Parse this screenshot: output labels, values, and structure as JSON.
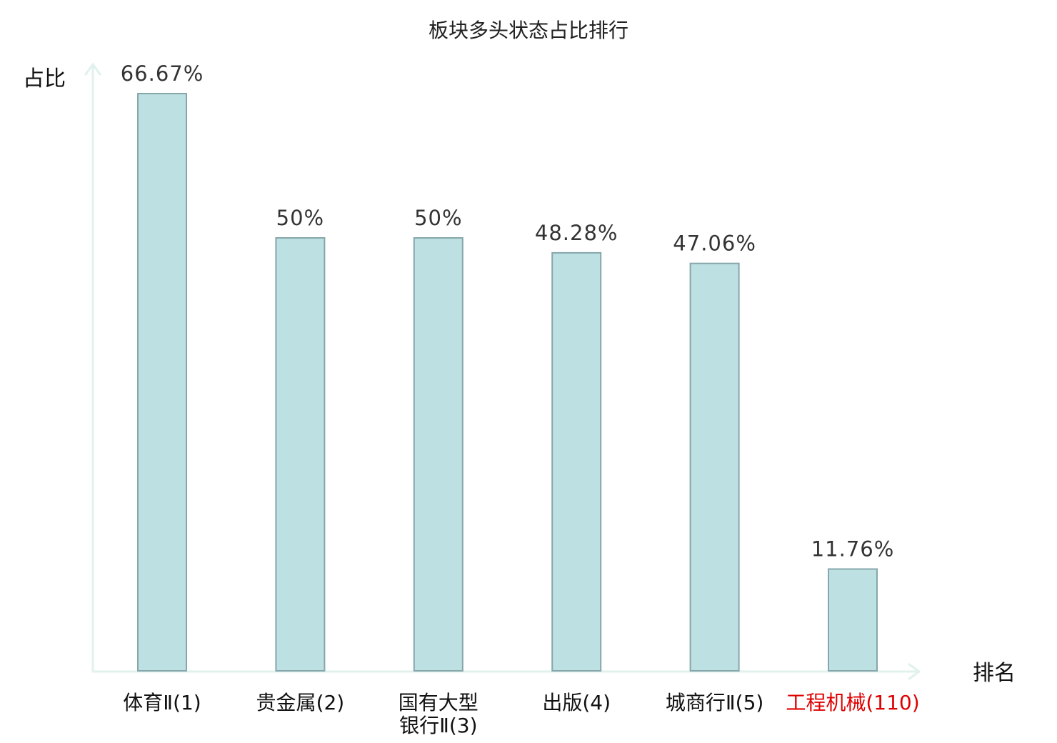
{
  "chart_data": {
    "type": "bar",
    "title": "板块多头状态占比排行",
    "xlabel": "排名",
    "ylabel": "占比",
    "categories": [
      {
        "name_lines": [
          "体育Ⅱ"
        ],
        "rank": "(1)",
        "highlight": false
      },
      {
        "name_lines": [
          "贵金属"
        ],
        "rank": "(2)",
        "highlight": false
      },
      {
        "name_lines": [
          "国有大型",
          "银行Ⅱ"
        ],
        "rank": "(3)",
        "highlight": false
      },
      {
        "name_lines": [
          "出版"
        ],
        "rank": "(4)",
        "highlight": false
      },
      {
        "name_lines": [
          "城商行Ⅱ"
        ],
        "rank": "(5)",
        "highlight": false
      },
      {
        "name_lines": [
          "工程机械"
        ],
        "rank": "(110)",
        "highlight": true
      }
    ],
    "values": [
      66.67,
      50,
      50,
      48.28,
      47.06,
      11.76
    ],
    "value_labels": [
      "66.67%",
      "50%",
      "50%",
      "48.28%",
      "47.06%",
      "11.76%"
    ],
    "ylim": [
      0,
      70
    ],
    "grid": false,
    "legend": "none",
    "colors": {
      "bar_fill": "#bde0e3",
      "bar_stroke": "#86a7aa",
      "axis": "#e0f1ee",
      "label": "#111111",
      "highlight": "#e00000"
    }
  }
}
